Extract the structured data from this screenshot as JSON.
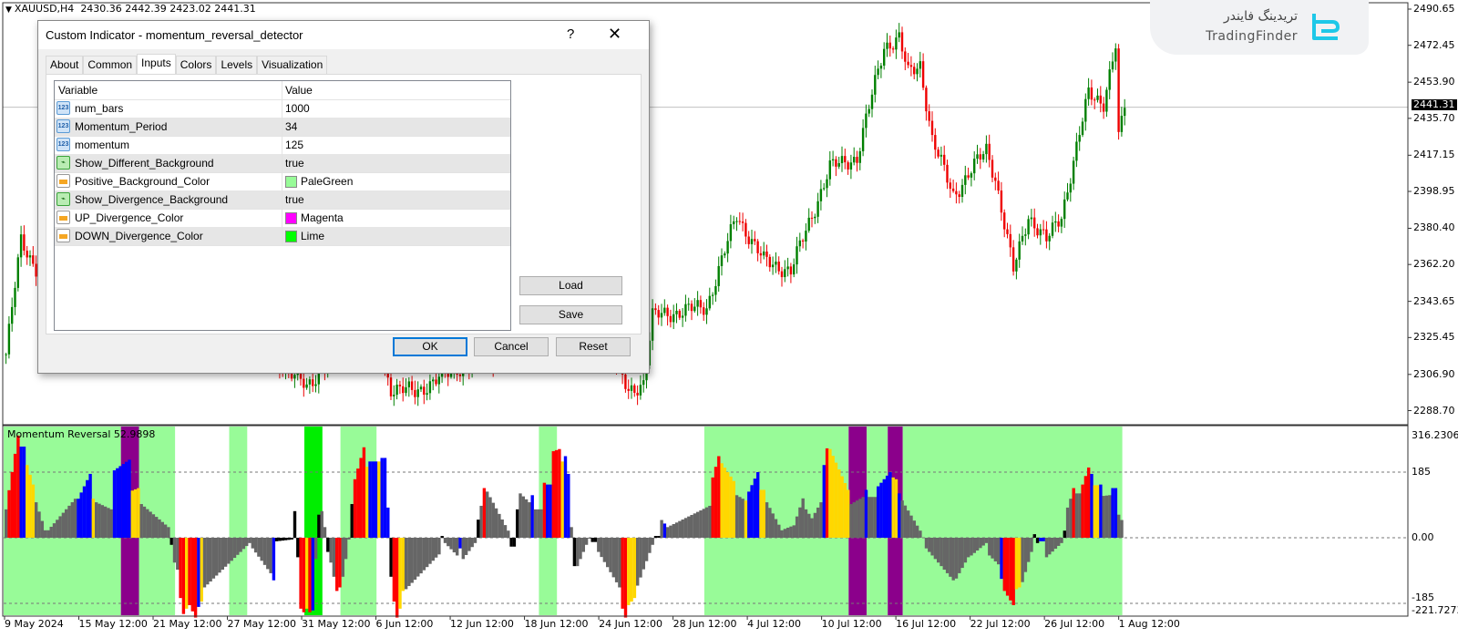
{
  "chart_header": {
    "symbol": "XAUUSD,H4",
    "ohlc": "2430.36 2442.39 2423.02 2441.31"
  },
  "logo": {
    "text_fa": "تریدینگ فایندر",
    "text_en": "TradingFinder",
    "color": "#1ec8e8"
  },
  "dialog": {
    "title": "Custom Indicator - momentum_reversal_detector",
    "help_label": "?",
    "close_label": "✕",
    "tabs": [
      "About",
      "Common",
      "Inputs",
      "Colors",
      "Levels",
      "Visualization"
    ],
    "active_tab": "Inputs",
    "columns": {
      "variable": "Variable",
      "value": "Value"
    },
    "rows": [
      {
        "variable": "num_bars",
        "value": "1000",
        "icon": "number-icon"
      },
      {
        "variable": "Momentum_Period",
        "value": "34",
        "icon": "number-icon"
      },
      {
        "variable": "momentum",
        "value": "125",
        "icon": "number-icon"
      },
      {
        "variable": "Show_Different_Background",
        "value": "true",
        "icon": "boolean-icon"
      },
      {
        "variable": "Positive_Background_Color",
        "value": "PaleGreen",
        "icon": "color-icon",
        "swatch": "#98fb98"
      },
      {
        "variable": "Show_Divergence_Background",
        "value": "true",
        "icon": "boolean-icon"
      },
      {
        "variable": "UP_Divergence_Color",
        "value": "Magenta",
        "icon": "color-icon",
        "swatch": "#ff00ff"
      },
      {
        "variable": "DOWN_Divergence_Color",
        "value": "Lime",
        "icon": "color-icon",
        "swatch": "#00ff00"
      }
    ],
    "buttons": {
      "load": "Load",
      "save": "Save",
      "ok": "OK",
      "cancel": "Cancel",
      "reset": "Reset"
    }
  },
  "colors": {
    "up_candle": "#008000",
    "down_candle": "#ee0000",
    "red": "#ff0000",
    "blue": "#0000ff",
    "yellow": "#ffd700",
    "gray": "#666666",
    "black": "#000000",
    "palegreen": "#98fb98",
    "purple": "#8b008b",
    "lime": "#00ee00"
  },
  "chart_data": [
    {
      "type": "candlestick",
      "symbol": "XAUUSD,H4",
      "y_ticks": [
        "2490.65",
        "2472.45",
        "2453.90",
        "2435.70",
        "2417.15",
        "2398.95",
        "2380.40",
        "2362.20",
        "2343.65",
        "2325.45",
        "2306.90",
        "2288.70"
      ],
      "ylim": [
        2288.7,
        2490.65
      ],
      "current_price": "2441.31",
      "close_keypoints_bar_price": [
        [
          0,
          2317
        ],
        [
          5,
          2374
        ],
        [
          14,
          2350
        ],
        [
          40,
          2370
        ],
        [
          55,
          2360
        ],
        [
          66,
          2320
        ],
        [
          90,
          2315
        ],
        [
          100,
          2300
        ],
        [
          120,
          2340
        ],
        [
          128,
          2300
        ],
        [
          136,
          2298
        ],
        [
          150,
          2310
        ],
        [
          170,
          2318
        ],
        [
          185,
          2345
        ],
        [
          200,
          2320
        ],
        [
          207,
          2298
        ],
        [
          212,
          2303
        ],
        [
          215,
          2336
        ],
        [
          233,
          2341
        ],
        [
          243,
          2387
        ],
        [
          252,
          2364
        ],
        [
          261,
          2359
        ],
        [
          274,
          2411
        ],
        [
          283,
          2416
        ],
        [
          292,
          2472
        ],
        [
          297,
          2476
        ],
        [
          300,
          2458
        ],
        [
          304,
          2463
        ],
        [
          308,
          2425
        ],
        [
          315,
          2397
        ],
        [
          326,
          2420
        ],
        [
          329,
          2406
        ],
        [
          335,
          2359
        ],
        [
          340,
          2387
        ],
        [
          346,
          2374
        ],
        [
          351,
          2387
        ],
        [
          360,
          2448
        ],
        [
          365,
          2444
        ],
        [
          369,
          2472
        ],
        [
          370,
          2425
        ],
        [
          372,
          2441
        ]
      ],
      "x_tick_labels": [
        "9 May 2024",
        "15 May 12:00",
        "21 May 12:00",
        "27 May 12:00",
        "31 May 12:00",
        "6 Jun 12:00",
        "12 Jun 12:00",
        "18 Jun 12:00",
        "24 Jun 12:00",
        "28 Jun 12:00",
        "4 Jul 12:00",
        "10 Jul 12:00",
        "16 Jul 12:00",
        "22 Jul 12:00",
        "26 Jul 12:00",
        "1 Aug 12:00"
      ]
    },
    {
      "type": "bar",
      "title": "Momentum Reversal 52.9898",
      "ylim": [
        -221.7273,
        316.2306
      ],
      "y_ticks": [
        "316.2306",
        "185",
        "0.00",
        "-185",
        "-221.7273"
      ],
      "levels": [
        185,
        0,
        -185
      ],
      "backgrounds_bar_range": [
        [
          0,
          39,
          "palegreen"
        ],
        [
          39,
          45,
          "purple"
        ],
        [
          45,
          57,
          "palegreen"
        ],
        [
          75,
          81,
          "palegreen"
        ],
        [
          100,
          106,
          "lime"
        ],
        [
          112,
          124,
          "palegreen"
        ],
        [
          178,
          184,
          "palegreen"
        ],
        [
          233,
          281,
          "palegreen"
        ],
        [
          281,
          287,
          "purple"
        ],
        [
          287,
          294,
          "palegreen"
        ],
        [
          294,
          299,
          "purple"
        ],
        [
          299,
          372,
          "palegreen"
        ]
      ],
      "runs_bar_from_to_value_from_to_color": [
        [
          0,
          1,
          80,
          80,
          "gray"
        ],
        [
          1,
          5,
          134,
          288,
          "red"
        ],
        [
          5,
          7,
          257,
          257,
          "blue"
        ],
        [
          7,
          10,
          205,
          150,
          "yellow"
        ],
        [
          10,
          14,
          100,
          21,
          "gray"
        ],
        [
          14,
          24,
          21,
          110,
          "gray"
        ],
        [
          24,
          29,
          110,
          180,
          "blue"
        ],
        [
          29,
          30,
          110,
          110,
          "yellow"
        ],
        [
          30,
          36,
          100,
          80,
          "gray"
        ],
        [
          36,
          42,
          190,
          220,
          "blue"
        ],
        [
          42,
          45,
          133,
          140,
          "yellow"
        ],
        [
          45,
          55,
          95,
          30,
          "gray"
        ],
        [
          55,
          56,
          -20,
          -20,
          "black"
        ],
        [
          56,
          58,
          -70,
          -90,
          "gray"
        ],
        [
          58,
          60,
          -170,
          -215,
          "red"
        ],
        [
          60,
          61,
          -200,
          -200,
          "yellow"
        ],
        [
          61,
          64,
          -190,
          -225,
          "red"
        ],
        [
          64,
          65,
          -195,
          -195,
          "blue"
        ],
        [
          65,
          66,
          -180,
          -180,
          "yellow"
        ],
        [
          66,
          82,
          -140,
          -15,
          "gray"
        ],
        [
          82,
          89,
          -30,
          -100,
          "gray"
        ],
        [
          89,
          90,
          -120,
          -120,
          "blue"
        ],
        [
          90,
          96,
          -10,
          -5,
          "black"
        ],
        [
          96,
          97,
          75,
          75,
          "black"
        ],
        [
          97,
          98,
          -55,
          -55,
          "black"
        ],
        [
          98,
          100,
          -200,
          -210,
          "red"
        ],
        [
          100,
          101,
          -200,
          -200,
          "yellow"
        ],
        [
          101,
          102,
          -210,
          -210,
          "red"
        ],
        [
          102,
          103,
          -205,
          -205,
          "blue"
        ],
        [
          103,
          104,
          -60,
          -60,
          "gray"
        ],
        [
          104,
          105,
          65,
          65,
          "black"
        ],
        [
          105,
          107,
          75,
          30,
          "gray"
        ],
        [
          107,
          108,
          -40,
          -40,
          "black"
        ],
        [
          108,
          110,
          -70,
          -110,
          "gray"
        ],
        [
          110,
          112,
          -150,
          -140,
          "red"
        ],
        [
          112,
          114,
          -110,
          -60,
          "gray"
        ],
        [
          114,
          115,
          -5,
          -5,
          "gray"
        ],
        [
          115,
          116,
          95,
          95,
          "black"
        ],
        [
          116,
          120,
          165,
          255,
          "red"
        ],
        [
          120,
          121,
          200,
          200,
          "yellow"
        ],
        [
          121,
          124,
          215,
          215,
          "blue"
        ],
        [
          124,
          125,
          215,
          215,
          "yellow"
        ],
        [
          125,
          127,
          225,
          225,
          "blue"
        ],
        [
          127,
          128,
          85,
          85,
          "blue"
        ],
        [
          128,
          129,
          -110,
          -110,
          "black"
        ],
        [
          129,
          131,
          -180,
          -225,
          "red"
        ],
        [
          131,
          133,
          -200,
          -150,
          "yellow"
        ],
        [
          133,
          145,
          -145,
          -47,
          "gray"
        ],
        [
          145,
          146,
          5,
          5,
          "black"
        ],
        [
          146,
          151,
          -15,
          -50,
          "gray"
        ],
        [
          151,
          152,
          -30,
          -30,
          "blue"
        ],
        [
          152,
          157,
          -60,
          -15,
          "gray"
        ],
        [
          157,
          158,
          51,
          51,
          "black"
        ],
        [
          158,
          159,
          90,
          90,
          "gray"
        ],
        [
          159,
          160,
          140,
          140,
          "red"
        ],
        [
          160,
          168,
          130,
          20,
          "gray"
        ],
        [
          168,
          170,
          -25,
          -25,
          "black"
        ],
        [
          170,
          171,
          80,
          80,
          "black"
        ],
        [
          171,
          175,
          125,
          100,
          "gray"
        ],
        [
          175,
          176,
          120,
          120,
          "blue"
        ],
        [
          176,
          179,
          80,
          80,
          "gray"
        ],
        [
          179,
          180,
          155,
          155,
          "red"
        ],
        [
          180,
          182,
          150,
          150,
          "blue"
        ],
        [
          182,
          185,
          244,
          250,
          "red"
        ],
        [
          185,
          186,
          215,
          215,
          "yellow"
        ],
        [
          186,
          188,
          230,
          180,
          "blue"
        ],
        [
          188,
          189,
          30,
          30,
          "gray"
        ],
        [
          189,
          190,
          -80,
          -80,
          "black"
        ],
        [
          190,
          195,
          -80,
          0,
          "gray"
        ],
        [
          195,
          197,
          -12,
          -12,
          "black"
        ],
        [
          197,
          205,
          -40,
          -140,
          "gray"
        ],
        [
          205,
          207,
          -200,
          -225,
          "red"
        ],
        [
          207,
          210,
          -190,
          -170,
          "yellow"
        ],
        [
          210,
          216,
          -135,
          -20,
          "gray"
        ],
        [
          216,
          218,
          5,
          5,
          "black"
        ],
        [
          218,
          219,
          50,
          50,
          "gray"
        ],
        [
          219,
          220,
          40,
          40,
          "blue"
        ],
        [
          220,
          235,
          30,
          90,
          "gray"
        ],
        [
          235,
          238,
          170,
          230,
          "red"
        ],
        [
          238,
          243,
          210,
          160,
          "yellow"
        ],
        [
          243,
          246,
          120,
          110,
          "gray"
        ],
        [
          246,
          247,
          105,
          105,
          "yellow"
        ],
        [
          247,
          251,
          130,
          185,
          "blue"
        ],
        [
          251,
          253,
          135,
          135,
          "yellow"
        ],
        [
          253,
          259,
          100,
          21,
          "gray"
        ],
        [
          259,
          263,
          25,
          35,
          "gray"
        ],
        [
          263,
          266,
          60,
          111,
          "gray"
        ],
        [
          266,
          269,
          80,
          55,
          "gray"
        ],
        [
          269,
          272,
          70,
          100,
          "gray"
        ],
        [
          272,
          273,
          205,
          205,
          "blue"
        ],
        [
          273,
          274,
          252,
          252,
          "red"
        ],
        [
          274,
          281,
          250,
          135,
          "yellow"
        ],
        [
          281,
          286,
          95,
          115,
          "gray"
        ],
        [
          286,
          287,
          135,
          135,
          "blue"
        ],
        [
          287,
          290,
          115,
          115,
          "gray"
        ],
        [
          290,
          295,
          145,
          185,
          "blue"
        ],
        [
          295,
          297,
          170,
          165,
          "yellow"
        ],
        [
          297,
          298,
          125,
          125,
          "blue"
        ],
        [
          298,
          305,
          105,
          20,
          "gray"
        ],
        [
          306,
          316,
          -30,
          -120,
          "gray"
        ],
        [
          316,
          321,
          -115,
          -55,
          "gray"
        ],
        [
          321,
          327,
          -50,
          -15,
          "gray"
        ],
        [
          327,
          331,
          -50,
          -75,
          "gray"
        ],
        [
          331,
          332,
          -116,
          -116,
          "blue"
        ],
        [
          332,
          336,
          -150,
          -190,
          "red"
        ],
        [
          336,
          338,
          -145,
          -140,
          "yellow"
        ],
        [
          338,
          342,
          -125,
          -40,
          "gray"
        ],
        [
          342,
          344,
          10,
          -15,
          "black"
        ],
        [
          344,
          346,
          -10,
          -10,
          "blue"
        ],
        [
          346,
          352,
          -55,
          -15,
          "gray"
        ],
        [
          352,
          353,
          20,
          20,
          "black"
        ],
        [
          353,
          355,
          85,
          110,
          "gray"
        ],
        [
          355,
          356,
          140,
          140,
          "red"
        ],
        [
          356,
          358,
          125,
          125,
          "gray"
        ],
        [
          358,
          361,
          150,
          198,
          "red"
        ],
        [
          361,
          362,
          180,
          180,
          "blue"
        ],
        [
          362,
          364,
          148,
          148,
          "yellow"
        ],
        [
          364,
          365,
          150,
          150,
          "blue"
        ],
        [
          365,
          368,
          118,
          120,
          "gray"
        ],
        [
          368,
          370,
          140,
          140,
          "blue"
        ],
        [
          370,
          372,
          65,
          50,
          "gray"
        ]
      ]
    }
  ]
}
